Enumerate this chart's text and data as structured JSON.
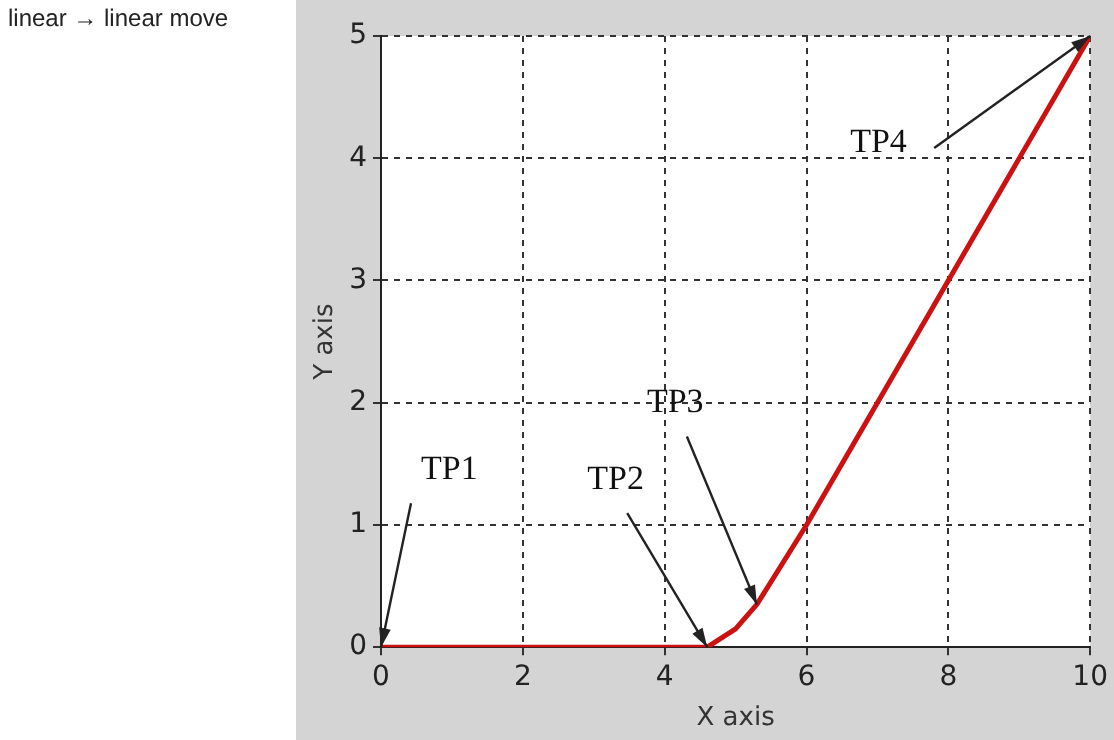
{
  "chart_data": {
    "type": "line",
    "title": "linear → linear move",
    "xlabel": "X axis",
    "ylabel": "Y axis",
    "x": [
      0,
      4.6,
      5.0,
      5.3,
      6,
      8,
      10
    ],
    "series": [
      {
        "color": "#cc1111",
        "values": [
          0,
          0,
          0.15,
          0.35,
          1,
          3,
          5
        ]
      }
    ],
    "xlim": [
      0,
      10
    ],
    "xticks": [
      0,
      2,
      4,
      6,
      8,
      10
    ],
    "ylim": [
      0,
      5
    ],
    "yticks": [
      0,
      1,
      2,
      3,
      4,
      5
    ],
    "grid": true,
    "marker": "none",
    "line_style": "solid",
    "legend": false,
    "annotations": [
      {
        "text": "TP1",
        "x": 0,
        "y": 0
      },
      {
        "text": "TP2",
        "x": 4.6,
        "y": 0
      },
      {
        "text": "TP3",
        "x": 5.3,
        "y": 0.35
      },
      {
        "text": "TP4",
        "x": 10,
        "y": 5
      }
    ]
  }
}
